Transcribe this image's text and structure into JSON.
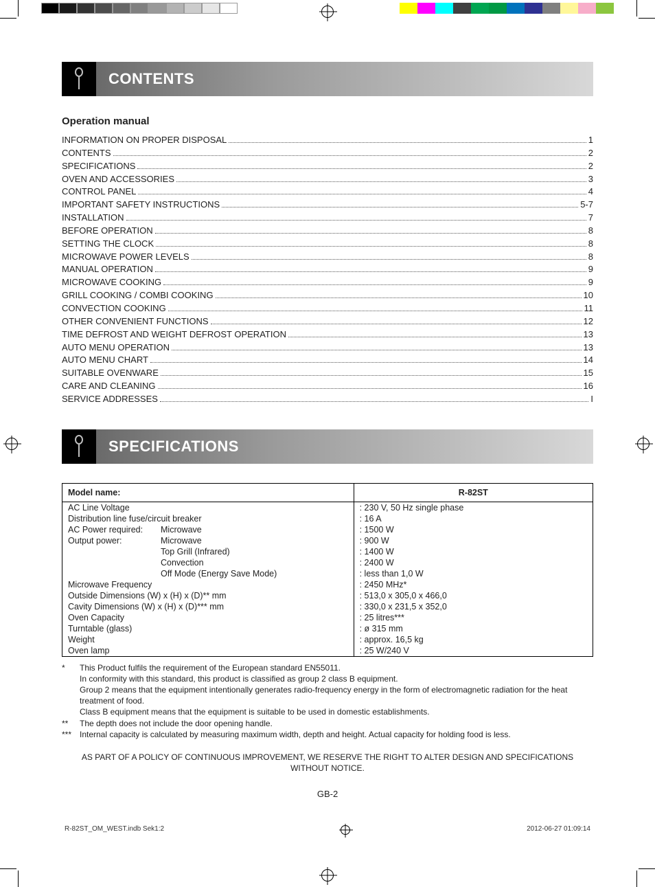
{
  "colorbars": {
    "gray": [
      "#000000",
      "#1a1a1a",
      "#333333",
      "#4d4d4d",
      "#666666",
      "#808080",
      "#999999",
      "#b3b3b3",
      "#cccccc",
      "#e6e6e6",
      "#ffffff"
    ],
    "color": [
      "#ffff00",
      "#ff00ff",
      "#00ffff",
      "#404040",
      "#00a651",
      "#009944",
      "#0072bc",
      "#2e3192",
      "#7f7f7f",
      "#fff799",
      "#f7adc9",
      "#8cc63f"
    ]
  },
  "section1": {
    "title": "CONTENTS"
  },
  "subheading": "Operation manual",
  "toc": [
    {
      "title": "INFORMATION ON PROPER DISPOSAL",
      "page": "1"
    },
    {
      "title": "CONTENTS",
      "page": "2"
    },
    {
      "title": "SPECIFICATIONS",
      "page": "2"
    },
    {
      "title": "OVEN AND ACCESSORIES",
      "page": "3"
    },
    {
      "title": "CONTROL PANEL",
      "page": "4"
    },
    {
      "title": "IMPORTANT SAFETY INSTRUCTIONS",
      "page": "5-7"
    },
    {
      "title": "INSTALLATION",
      "page": "7"
    },
    {
      "title": "BEFORE OPERATION",
      "page": "8"
    },
    {
      "title": "SETTING THE CLOCK",
      "page": "8"
    },
    {
      "title": "MICROWAVE POWER LEVELS",
      "page": "8"
    },
    {
      "title": "MANUAL OPERATION",
      "page": "9"
    },
    {
      "title": "MICROWAVE COOKING",
      "page": "9"
    },
    {
      "title": "GRILL COOKING / COMBI COOKING",
      "page": "10"
    },
    {
      "title": "CONVECTION COOKING",
      "page": "11"
    },
    {
      "title": "OTHER CONVENIENT FUNCTIONS",
      "page": "12"
    },
    {
      "title": "TIME DEFROST AND WEIGHT DEFROST OPERATION",
      "page": "13"
    },
    {
      "title": "AUTO MENU OPERATION",
      "page": "13"
    },
    {
      "title": "AUTO MENU CHART",
      "page": "14"
    },
    {
      "title": "SUITABLE OVENWARE",
      "page": "15"
    },
    {
      "title": "CARE AND CLEANING",
      "page": "16"
    },
    {
      "title": "SERVICE ADDRESSES",
      "page": "I"
    }
  ],
  "section2": {
    "title": "SPECIFICATIONS"
  },
  "spec": {
    "head": {
      "label": "Model name:",
      "value": "R-82ST"
    },
    "rows": [
      {
        "label": "AC Line Voltage",
        "sub": "",
        "value": ": 230 V, 50 Hz single phase"
      },
      {
        "label": "Distribution line fuse/circuit breaker",
        "sub": "",
        "value": ": 16 A"
      },
      {
        "label": "AC Power required:",
        "sub": "Microwave",
        "value": ": 1500 W"
      },
      {
        "label": "Output power:",
        "sub": "Microwave",
        "value": ": 900 W"
      },
      {
        "label": "",
        "sub": "Top Grill (Infrared)",
        "value": ": 1400 W"
      },
      {
        "label": "",
        "sub": "Convection",
        "value": ": 2400 W"
      },
      {
        "label": "",
        "sub": "Off Mode (Energy Save Mode)",
        "value": ": less than 1,0 W"
      },
      {
        "label": "Microwave Frequency",
        "sub": "",
        "value": ": 2450 MHz*"
      },
      {
        "label": "Outside Dimensions (W) x (H) x (D)** mm",
        "sub": "",
        "value": ": 513,0 x 305,0 x 466,0"
      },
      {
        "label": "Cavity Dimensions (W) x (H) x (D)*** mm",
        "sub": "",
        "value": ": 330,0 x 231,5 x 352,0"
      },
      {
        "label": "Oven Capacity",
        "sub": "",
        "value": ": 25 litres***"
      },
      {
        "label": "Turntable (glass)",
        "sub": "",
        "value": ": ø 315 mm"
      },
      {
        "label": "Weight",
        "sub": "",
        "value": ": approx. 16,5  kg"
      },
      {
        "label": "Oven lamp",
        "sub": "",
        "value": ": 25 W/240 V"
      }
    ]
  },
  "footnotes": [
    {
      "mark": "*",
      "text": "This Product fulfils the requirement of the European standard EN55011.\nIn conformity with this standard, this product is classified as group 2 class B equipment.\nGroup 2 means that the equipment intentionally generates radio-frequency energy in the form of electromagnetic radiation for the heat treatment of food.\nClass B equipment means that the equipment is suitable to be used in domestic establishments."
    },
    {
      "mark": "**",
      "text": "The depth does not include the door opening handle."
    },
    {
      "mark": "***",
      "text": "Internal capacity is calculated by measuring maximum width, depth and height. Actual capacity for holding food is less."
    }
  ],
  "disclaimer": "AS PART OF A POLICY OF CONTINUOUS IMPROVEMENT, WE RESERVE THE RIGHT TO ALTER DESIGN AND SPECIFICATIONS WITHOUT NOTICE.",
  "pagenum": "GB-2",
  "printfooter": {
    "file": "R-82ST_OM_WEST.indb   Sek1:2",
    "timestamp": "2012-06-27   01:09:14"
  }
}
